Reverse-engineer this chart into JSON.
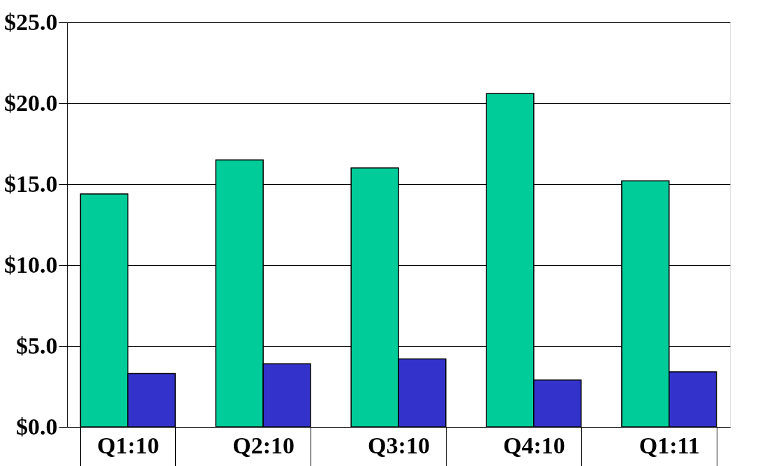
{
  "chart_data": {
    "type": "bar",
    "categories": [
      "Q1:10",
      "Q2:10",
      "Q3:10",
      "Q4:10",
      "Q1:11"
    ],
    "series": [
      {
        "color": "#00cc99",
        "values": [
          14.4,
          16.5,
          16.0,
          20.6,
          15.2
        ]
      },
      {
        "color": "#3333cc",
        "values": [
          3.3,
          3.9,
          4.2,
          2.9,
          3.4
        ]
      }
    ],
    "ylim": [
      0,
      25
    ],
    "yticks": [
      {
        "value": 0,
        "label": "$0.0"
      },
      {
        "value": 5,
        "label": "$5.0"
      },
      {
        "value": 10,
        "label": "$10.0"
      },
      {
        "value": 15,
        "label": "$15.0"
      },
      {
        "value": 20,
        "label": "$20.0"
      },
      {
        "value": 25,
        "label": "$25.0"
      }
    ],
    "grid": "y",
    "legend": false
  }
}
